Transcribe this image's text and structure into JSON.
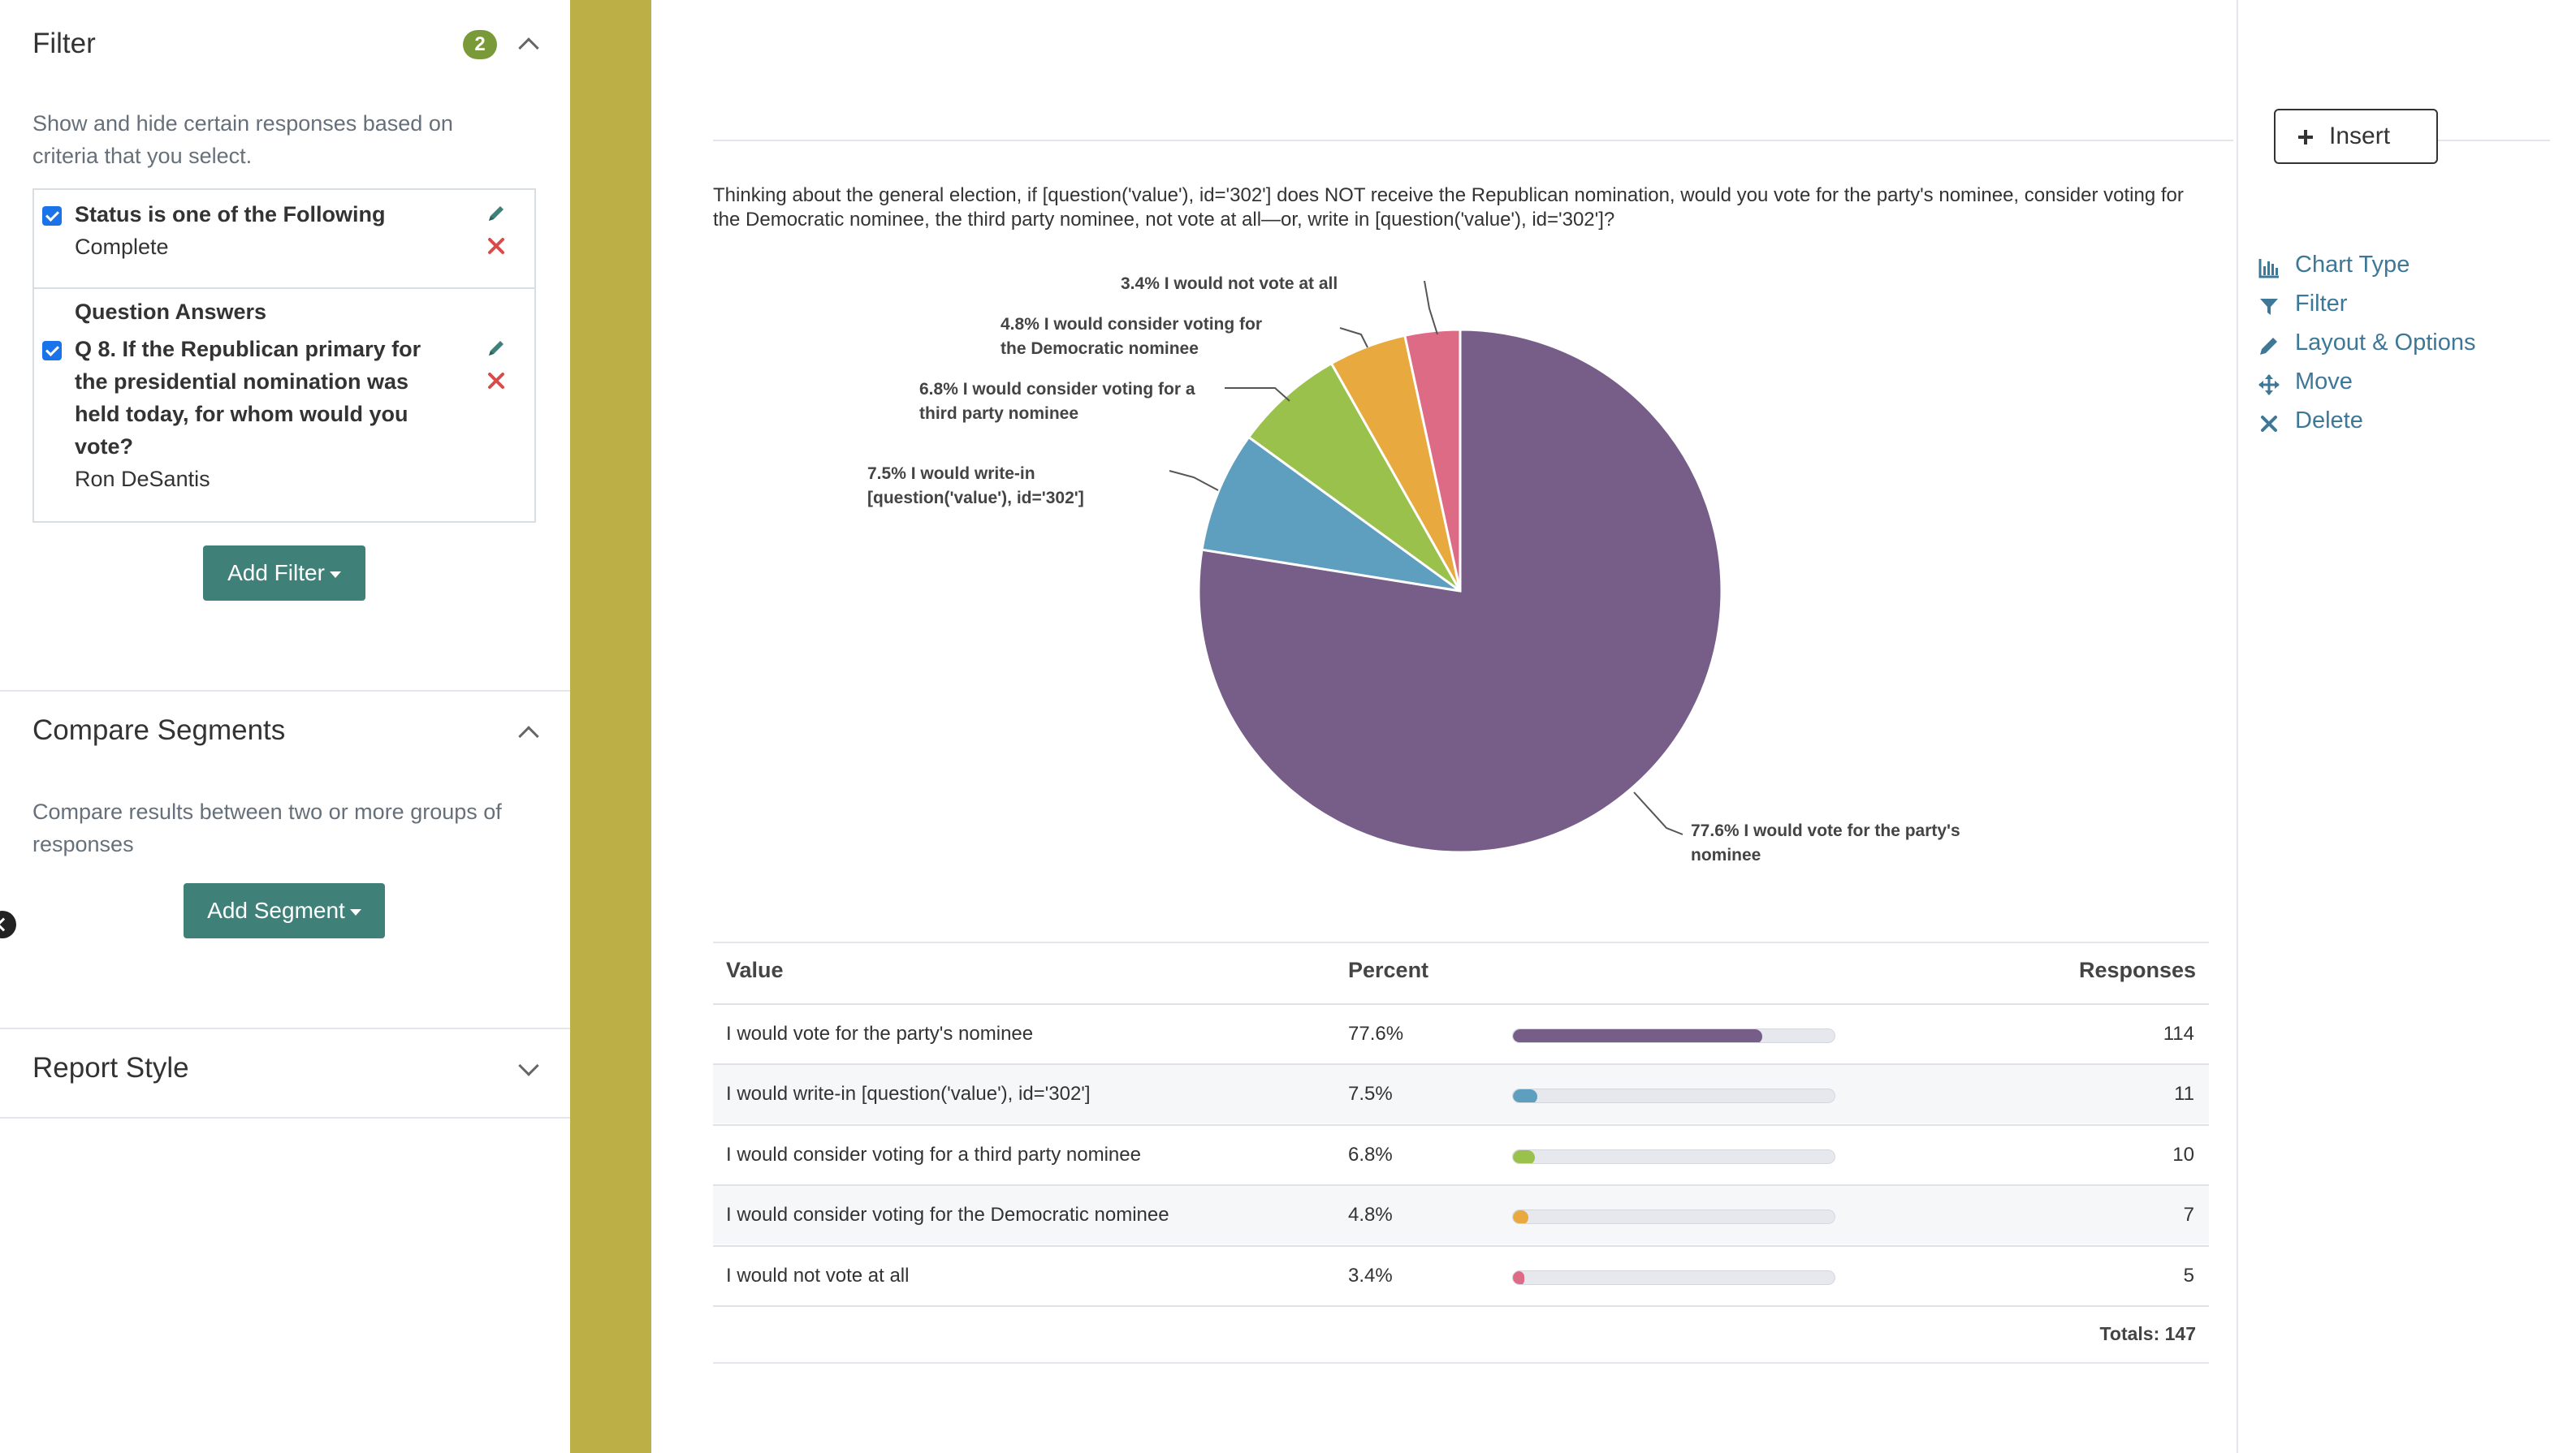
{
  "sidebar": {
    "filter": {
      "title": "Filter",
      "count": "2",
      "description": "Show and hide certain responses based on criteria that you select.",
      "rules": [
        {
          "title": "Status is one of the Following",
          "value": "Complete"
        },
        {
          "group_label": "Question Answers",
          "title_lines": [
            "Q 8. If the Republican primary for",
            "the presidential nomination was",
            "held today, for whom would you",
            "vote?"
          ],
          "value": "Ron DeSantis"
        }
      ],
      "add_button": "Add Filter"
    },
    "compare": {
      "title": "Compare Segments",
      "description": "Compare results between two or more groups of responses",
      "add_button": "Add Segment"
    },
    "report_style": {
      "title": "Report Style"
    }
  },
  "toolbar": {
    "insert_label": "Insert"
  },
  "question_text": "Thinking about the general election, if [question('value'), id='302'] does NOT receive the Republican nomination, would you vote for the party's nominee, consider voting for the Democratic nominee, the third party nominee, not vote at all—or, write in [question('value'), id='302']?",
  "actions": [
    {
      "label": "Chart Type",
      "icon": "bar-chart-icon"
    },
    {
      "label": "Filter",
      "icon": "funnel-icon"
    },
    {
      "label": "Layout & Options",
      "icon": "pencil-icon"
    },
    {
      "label": "Move",
      "icon": "move-arrows-icon"
    },
    {
      "label": "Delete",
      "icon": "close-icon"
    }
  ],
  "chart_data": {
    "type": "pie",
    "slices": [
      {
        "label": "I would vote for the party's nominee",
        "percent": 77.6,
        "responses": 114,
        "color": "#775e89",
        "callout": [
          "77.6% I would vote for the party's",
          "nominee"
        ]
      },
      {
        "label": "I would write-in [question('value'), id='302']",
        "percent": 7.5,
        "responses": 11,
        "color": "#5e9fc0",
        "callout": [
          "7.5% I would write-in",
          "[question('value'), id='302']"
        ]
      },
      {
        "label": "I would consider voting for a third party nominee",
        "percent": 6.8,
        "responses": 10,
        "color": "#99c14c",
        "callout": [
          "6.8% I would consider voting for a",
          "third party nominee"
        ]
      },
      {
        "label": "I would consider voting for the Democratic nominee",
        "percent": 4.8,
        "responses": 7,
        "color": "#e8a93e",
        "callout": [
          "4.8% I would consider voting for",
          "the Democratic nominee"
        ]
      },
      {
        "label": "I would not vote at all",
        "percent": 3.4,
        "responses": 5,
        "color": "#de6b86",
        "callout": [
          "3.4% I would not vote at all"
        ]
      }
    ]
  },
  "table": {
    "headers": {
      "value": "Value",
      "percent": "Percent",
      "responses": "Responses"
    },
    "rows": [
      {
        "value": "I would vote for the party's nominee",
        "percent": "77.6%",
        "responses": "114"
      },
      {
        "value": "I would write-in [question('value'), id='302']",
        "percent": "7.5%",
        "responses": "11"
      },
      {
        "value": "I would consider voting for a third party nominee",
        "percent": "6.8%",
        "responses": "10"
      },
      {
        "value": "I would consider voting for the Democratic nominee",
        "percent": "4.8%",
        "responses": "7"
      },
      {
        "value": "I would not vote at all",
        "percent": "3.4%",
        "responses": "5"
      }
    ],
    "totals": "Totals: 147"
  }
}
